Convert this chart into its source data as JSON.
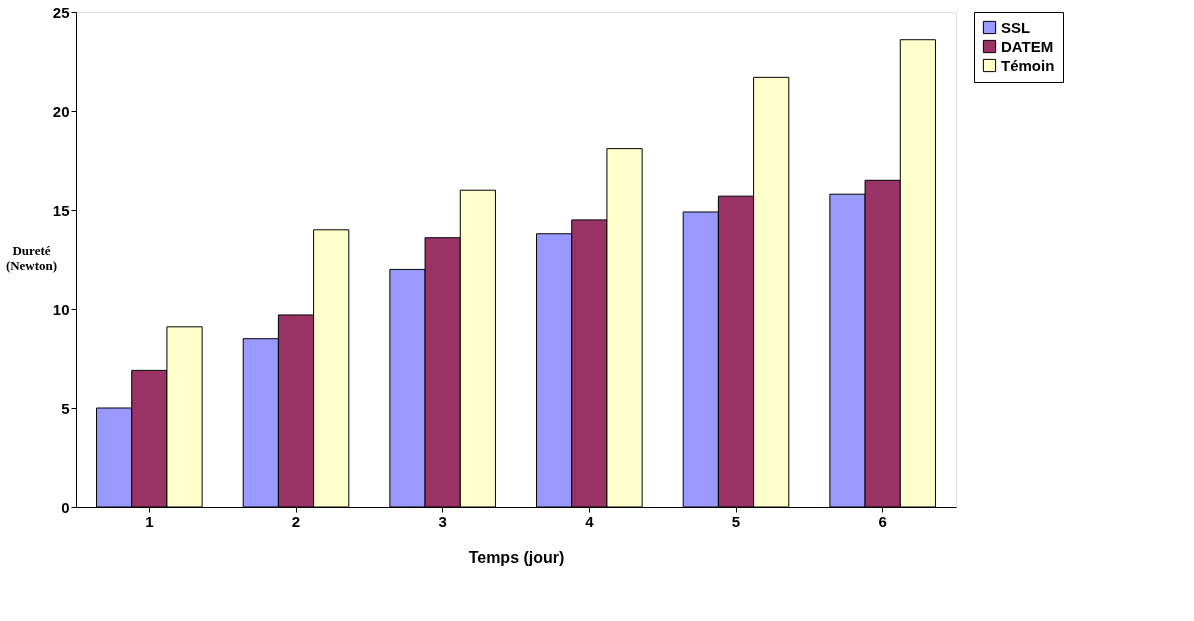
{
  "chart_data": {
    "type": "bar",
    "xlabel": "Temps (jour)",
    "ylabel": "Dureté\n(Newton)",
    "categories": [
      "1",
      "2",
      "3",
      "4",
      "5",
      "6"
    ],
    "series": [
      {
        "name": "SSL",
        "color": "#9999ff",
        "values": [
          5.0,
          8.5,
          12.0,
          13.8,
          14.9,
          15.8
        ]
      },
      {
        "name": "DATEM",
        "color": "#993366",
        "values": [
          6.9,
          9.7,
          13.6,
          14.5,
          15.7,
          16.5
        ]
      },
      {
        "name": "Témoin",
        "color": "#ffffcc",
        "values": [
          9.1,
          14.0,
          16.0,
          18.1,
          21.7,
          23.6
        ]
      }
    ],
    "ylim": [
      0,
      25
    ],
    "yticks": [
      0,
      5,
      10,
      15,
      20,
      25
    ],
    "grid": false,
    "legend": "right"
  }
}
